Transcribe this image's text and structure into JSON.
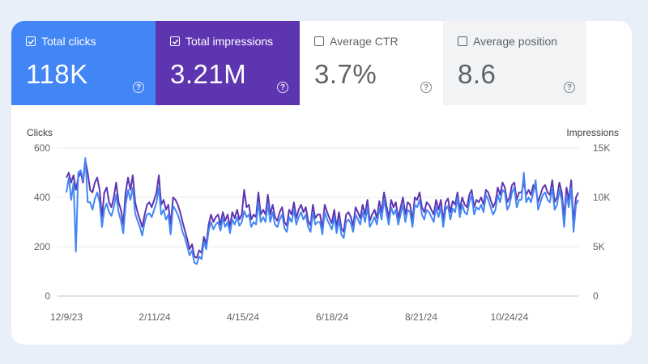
{
  "metrics": [
    {
      "label": "Total clicks",
      "value": "118K",
      "checked": true,
      "color": "#4285f4"
    },
    {
      "label": "Total impressions",
      "value": "3.21M",
      "checked": true,
      "color": "#5e35b1"
    },
    {
      "label": "Average CTR",
      "value": "3.7%",
      "checked": false,
      "color": "#ffffff"
    },
    {
      "label": "Average position",
      "value": "8.6",
      "checked": false,
      "color": "#f1f3f4"
    }
  ],
  "icons": {
    "help": "help-circle-icon",
    "check": "checkbox-check-icon"
  },
  "chart_data": {
    "type": "line",
    "left_axis": {
      "label": "Clicks",
      "ticks": [
        "0",
        "200",
        "400",
        "600"
      ],
      "range": [
        0,
        600
      ]
    },
    "right_axis": {
      "label": "Impressions",
      "ticks": [
        "0",
        "5K",
        "10K",
        "15K"
      ],
      "range": [
        0,
        15000
      ]
    },
    "x_ticks": [
      "12/9/23",
      "2/11/24",
      "4/15/24",
      "6/18/24",
      "8/21/24",
      "10/24/24"
    ],
    "grid": true,
    "series": [
      {
        "name": "Total clicks",
        "color": "#4285f4",
        "axis": "left",
        "values": [
          420,
          480,
          390,
          460,
          180,
          500,
          510,
          470,
          560,
          380,
          380,
          350,
          395,
          420,
          380,
          280,
          350,
          375,
          340,
          325,
          360,
          410,
          340,
          305,
          255,
          370,
          430,
          390,
          440,
          335,
          305,
          280,
          245,
          300,
          330,
          335,
          320,
          350,
          380,
          440,
          330,
          350,
          310,
          330,
          250,
          365,
          350,
          330,
          300,
          260,
          235,
          200,
          165,
          185,
          135,
          130,
          160,
          150,
          220,
          190,
          265,
          300,
          270,
          290,
          300,
          265,
          315,
          280,
          300,
          255,
          310,
          290,
          320,
          285,
          300,
          345,
          320,
          330,
          280,
          300,
          290,
          380,
          300,
          320,
          300,
          375,
          300,
          340,
          290,
          280,
          310,
          330,
          275,
          260,
          320,
          300,
          350,
          290,
          320,
          340,
          310,
          330,
          280,
          260,
          340,
          290,
          300,
          300,
          250,
          340,
          310,
          290,
          270,
          320,
          255,
          310,
          250,
          235,
          300,
          310,
          295,
          260,
          330,
          310,
          290,
          340,
          300,
          360,
          280,
          300,
          320,
          290,
          355,
          310,
          390,
          340,
          290,
          360,
          330,
          350,
          290,
          330,
          370,
          300,
          350,
          340,
          280,
          370,
          360,
          390,
          330,
          310,
          350,
          340,
          320,
          300,
          360,
          320,
          360,
          280,
          350,
          365,
          310,
          355,
          340,
          400,
          320,
          370,
          340,
          330,
          380,
          410,
          330,
          360,
          350,
          370,
          340,
          410,
          390,
          360,
          330,
          350,
          410,
          380,
          430,
          420,
          350,
          370,
          420,
          440,
          360,
          390,
          390,
          500,
          380,
          400,
          380,
          420,
          470,
          350,
          380,
          410,
          420,
          390,
          380,
          440,
          350,
          370,
          430,
          390,
          280,
          410,
          360,
          440,
          260,
          370,
          390
        ]
      },
      {
        "name": "Total impressions",
        "color": "#5e35b1",
        "axis": "left",
        "values": [
          480,
          500,
          460,
          490,
          430,
          480,
          500,
          460,
          550,
          500,
          430,
          420,
          460,
          480,
          430,
          320,
          420,
          440,
          380,
          360,
          400,
          460,
          380,
          350,
          290,
          420,
          480,
          430,
          490,
          380,
          340,
          310,
          280,
          330,
          370,
          380,
          360,
          390,
          420,
          490,
          370,
          390,
          350,
          370,
          290,
          400,
          390,
          370,
          340,
          300,
          265,
          230,
          190,
          210,
          160,
          155,
          185,
          175,
          240,
          210,
          290,
          330,
          300,
          320,
          330,
          290,
          340,
          305,
          330,
          280,
          340,
          315,
          350,
          310,
          330,
          430,
          360,
          370,
          310,
          330,
          320,
          420,
          330,
          350,
          330,
          410,
          330,
          370,
          320,
          305,
          340,
          360,
          300,
          285,
          350,
          330,
          380,
          315,
          350,
          370,
          340,
          360,
          305,
          285,
          370,
          315,
          330,
          330,
          275,
          370,
          340,
          315,
          295,
          350,
          280,
          340,
          275,
          260,
          330,
          340,
          320,
          285,
          360,
          340,
          315,
          370,
          330,
          390,
          305,
          330,
          350,
          315,
          385,
          340,
          420,
          370,
          315,
          390,
          360,
          380,
          315,
          360,
          400,
          330,
          380,
          370,
          305,
          400,
          390,
          420,
          360,
          340,
          380,
          370,
          350,
          330,
          390,
          350,
          390,
          305,
          380,
          395,
          340,
          385,
          370,
          420,
          350,
          400,
          370,
          360,
          410,
          430,
          360,
          390,
          380,
          400,
          370,
          430,
          420,
          390,
          360,
          380,
          440,
          410,
          460,
          440,
          380,
          400,
          450,
          460,
          390,
          420,
          420,
          460,
          410,
          430,
          410,
          450,
          440,
          380,
          410,
          440,
          450,
          420,
          410,
          470,
          380,
          400,
          460,
          420,
          320,
          440,
          390,
          470,
          300,
          400,
          420
        ]
      }
    ]
  }
}
